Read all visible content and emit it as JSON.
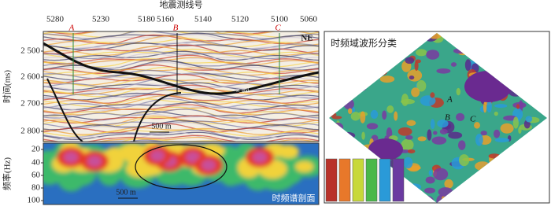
{
  "seismic_section": {
    "x_axis_title": "地震测线号",
    "x_labels": [
      "5280",
      "5230",
      "5180",
      "5160",
      "5140",
      "5120",
      "5100",
      "5060"
    ],
    "y_axis_title": "时间(ms)",
    "y_labels": [
      "2 500",
      "2 600",
      "2 700",
      "2 800"
    ],
    "well_markers": [
      "A",
      "B",
      "C"
    ],
    "orientation": "NE",
    "horizon_label": "st_gnd",
    "scale_bar": "500 m"
  },
  "spectrum_section": {
    "y_axis_title": "频率(Hz)",
    "y_labels": [
      "20",
      "40",
      "60",
      "80",
      "100"
    ],
    "scale_bar": "500 m",
    "caption": "时频谱剖面"
  },
  "classification_map": {
    "title": "时频域波形分类",
    "markers": [
      "A",
      "B",
      "C"
    ]
  }
}
